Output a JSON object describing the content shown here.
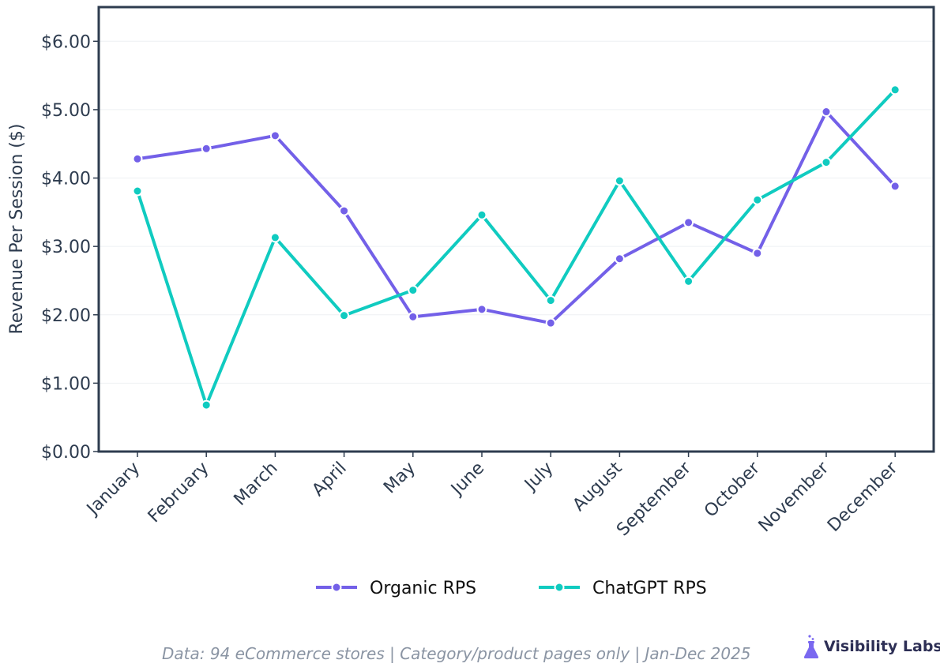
{
  "chart_data": {
    "type": "line",
    "ylabel": "Revenue Per Session ($)",
    "xlabel": "",
    "categories": [
      "January",
      "February",
      "March",
      "April",
      "May",
      "June",
      "July",
      "August",
      "September",
      "October",
      "November",
      "December"
    ],
    "ylim": [
      0,
      6.5
    ],
    "yticks": [
      "$0.00",
      "$1.00",
      "$2.00",
      "$3.00",
      "$4.00",
      "$5.00",
      "$6.00"
    ],
    "ytick_values": [
      0,
      1,
      2,
      3,
      4,
      5,
      6
    ],
    "grid": true,
    "legend_placement": "bottom-center",
    "series": [
      {
        "name": "Organic RPS",
        "color": "#7360e8",
        "values": [
          4.28,
          4.43,
          4.62,
          3.52,
          1.97,
          2.08,
          1.88,
          2.82,
          3.35,
          2.9,
          4.97,
          3.88
        ]
      },
      {
        "name": "ChatGPT RPS",
        "color": "#10cbc0",
        "values": [
          3.81,
          0.68,
          3.13,
          1.99,
          2.36,
          3.46,
          2.21,
          3.96,
          2.49,
          3.68,
          4.23,
          5.29
        ]
      }
    ]
  },
  "footer": {
    "note": "Data: 94 eCommerce stores | Category/product pages only | Jan-Dec 2025",
    "brand": "Visibility Labs",
    "brand_icon": "flask-icon"
  }
}
